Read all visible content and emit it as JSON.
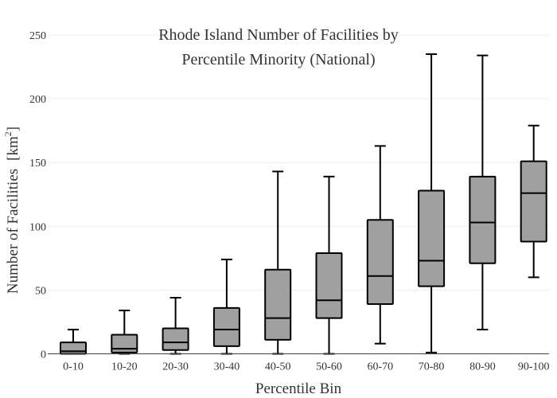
{
  "chart_data": {
    "type": "box",
    "title_lines": [
      "Rhode Island Number of Facilities by",
      "Percentile Minority (National)"
    ],
    "xlabel": "Percentile Bin",
    "ylabel": "Number of Facilities",
    "ylabel_unit_base": "[km",
    "ylabel_unit_exp": "2",
    "ylabel_unit_close": "]",
    "ylim": [
      0,
      250
    ],
    "yticks": [
      0,
      50,
      100,
      150,
      200,
      250
    ],
    "grid": true,
    "box_color": "#a0a0a0",
    "categories": [
      "0-10",
      "10-20",
      "20-30",
      "30-40",
      "40-50",
      "50-60",
      "60-70",
      "70-80",
      "80-90",
      "90-100"
    ],
    "boxes": [
      {
        "min": 0,
        "q1": 0,
        "median": 2,
        "q3": 9,
        "max": 19
      },
      {
        "min": 0,
        "q1": 1,
        "median": 4,
        "q3": 15,
        "max": 34
      },
      {
        "min": 0,
        "q1": 3,
        "median": 9,
        "q3": 20,
        "max": 44
      },
      {
        "min": 0,
        "q1": 6,
        "median": 19,
        "q3": 36,
        "max": 74
      },
      {
        "min": 0,
        "q1": 11,
        "median": 28,
        "q3": 66,
        "max": 143
      },
      {
        "min": 0,
        "q1": 28,
        "median": 42,
        "q3": 79,
        "max": 139
      },
      {
        "min": 8,
        "q1": 39,
        "median": 61,
        "q3": 105,
        "max": 163
      },
      {
        "min": 1,
        "q1": 53,
        "median": 73,
        "q3": 128,
        "max": 235
      },
      {
        "min": 19,
        "q1": 71,
        "median": 103,
        "q3": 139,
        "max": 234
      },
      {
        "min": 60,
        "q1": 88,
        "median": 126,
        "q3": 151,
        "max": 179
      }
    ]
  }
}
